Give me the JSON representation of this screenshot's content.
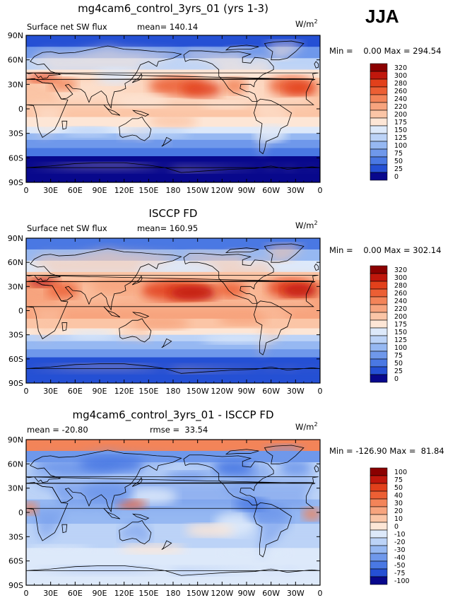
{
  "season": "JJA",
  "chart_data": [
    {
      "type": "heatmap",
      "panel_title": "mg4cam6_control_3yrs_01 (yrs 1-3)",
      "variable": "Surface net SW flux",
      "mean_text": "mean= 140.14",
      "units": "W/m",
      "units_exp": "2",
      "minmax_text": "Min =    0.00 Max = 294.54",
      "x_ticks": [
        "0",
        "30E",
        "60E",
        "90E",
        "120E",
        "150E",
        "180",
        "150W",
        "120W",
        "90W",
        "60W",
        "30W",
        "0"
      ],
      "y_ticks": [
        "90N",
        "60N",
        "30N",
        "0",
        "30S",
        "60S",
        "90S"
      ],
      "levels": [
        "320",
        "300",
        "280",
        "260",
        "240",
        "220",
        "200",
        "175",
        "150",
        "125",
        "100",
        "75",
        "50",
        "25",
        "0"
      ],
      "colors": [
        "#8b0000",
        "#c0170c",
        "#e2401b",
        "#ec5f34",
        "#f38459",
        "#f7a47e",
        "#fbc5a6",
        "#fde6d6",
        "#dde9fa",
        "#bcd3f7",
        "#96b8f2",
        "#6f98eb",
        "#4a78e3",
        "#2550d4",
        "#08088c"
      ]
    },
    {
      "type": "heatmap",
      "panel_title": "ISCCP FD",
      "variable": "Surface net SW flux",
      "mean_text": "mean= 160.95",
      "units": "W/m",
      "units_exp": "2",
      "minmax_text": "Min =    0.00 Max = 302.14",
      "x_ticks": [
        "0",
        "30E",
        "60E",
        "90E",
        "120E",
        "150E",
        "180",
        "150W",
        "120W",
        "90W",
        "60W",
        "30W",
        "0"
      ],
      "y_ticks": [
        "90N",
        "60N",
        "30N",
        "0",
        "30S",
        "60S",
        "90S"
      ],
      "levels": [
        "320",
        "300",
        "280",
        "260",
        "240",
        "220",
        "200",
        "175",
        "150",
        "125",
        "100",
        "75",
        "50",
        "25",
        "0"
      ],
      "colors": [
        "#8b0000",
        "#c0170c",
        "#e2401b",
        "#ec5f34",
        "#f38459",
        "#f7a47e",
        "#fbc5a6",
        "#fde6d6",
        "#dde9fa",
        "#bcd3f7",
        "#96b8f2",
        "#6f98eb",
        "#4a78e3",
        "#2550d4",
        "#08088c"
      ]
    },
    {
      "type": "heatmap",
      "panel_title": "mg4cam6_control_3yrs_01 - ISCCP FD",
      "variable": "",
      "mean_text": "mean = -20.80",
      "rmse_text": "rmse =  33.54",
      "units": "W/m",
      "units_exp": "2",
      "minmax_text": "Min = -126.90 Max =  81.84",
      "x_ticks": [
        "0",
        "30E",
        "60E",
        "90E",
        "120E",
        "150E",
        "180",
        "150W",
        "120W",
        "90W",
        "60W",
        "30W",
        "0"
      ],
      "y_ticks": [
        "90N",
        "60N",
        "30N",
        "0",
        "30S",
        "60S",
        "90S"
      ],
      "levels": [
        "100",
        "75",
        "50",
        "40",
        "30",
        "20",
        "10",
        "0",
        "-10",
        "-20",
        "-30",
        "-40",
        "-50",
        "-75",
        "-100"
      ],
      "colors": [
        "#8b0000",
        "#c0170c",
        "#e2401b",
        "#ec5f34",
        "#f38459",
        "#f7a47e",
        "#fbc5a6",
        "#fde6d6",
        "#dde9fa",
        "#bcd3f7",
        "#96b8f2",
        "#6f98eb",
        "#4a78e3",
        "#2550d4",
        "#08088c"
      ]
    }
  ]
}
